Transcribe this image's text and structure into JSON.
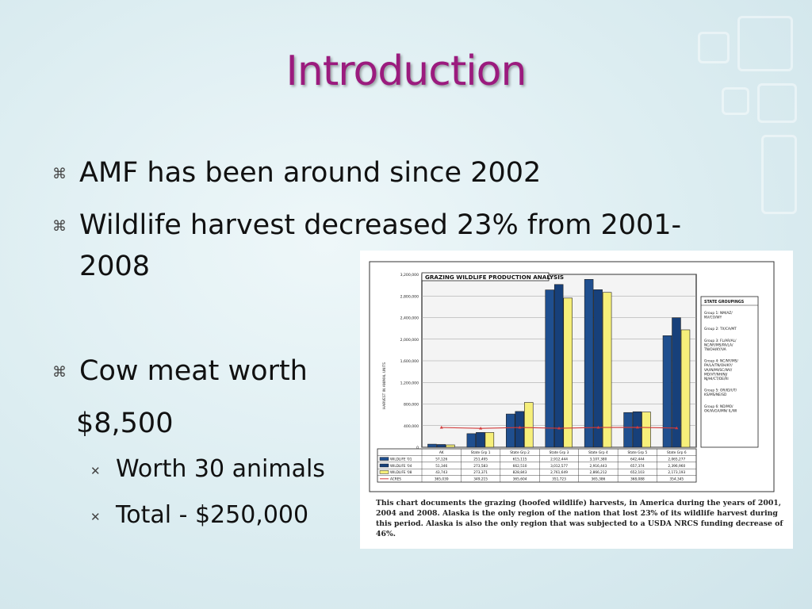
{
  "slide": {
    "title": "Introduction",
    "bullets": [
      "AMF has been around since 2002",
      "Wildlife harvest decreased 23% from 2001-",
      "2008",
      "Cow meat worth",
      "$8,500"
    ],
    "sub_bullets": [
      "Worth 30 animals",
      "Total  - $250,000"
    ],
    "icons": {
      "bullet": "command-key-icon",
      "sub_bullet": "cross-icon"
    }
  },
  "chart_data": {
    "type": "bar",
    "title": "GRAZING WILDLIFE PRODUCTION ANALYSIS",
    "ylabel": "HARVEST IN ANIMAL UNITS",
    "ylim": [
      0,
      3200000
    ],
    "yticks": [
      "3,200,000",
      "2,800,000",
      "2,400,000",
      "2,000,000",
      "1,600,000",
      "1,200,000",
      "800,000",
      "400,000",
      "0"
    ],
    "categories": [
      "AK",
      "State Grp 1",
      "State Grp 2",
      "State Grp 3",
      "State Grp 4",
      "State Grp 5",
      "State Grp 6"
    ],
    "series": [
      {
        "name": "WILDLIFE '01",
        "values": [
          57126,
          251495,
          615115,
          2912444,
          3107380,
          642444,
          2065277
        ],
        "color": "#1f4f8f"
      },
      {
        "name": "WILDLIFE '04",
        "values": [
          51346,
          273583,
          662510,
          3012577,
          2916443,
          657374,
          2396960
        ],
        "color": "#17407a"
      },
      {
        "name": "WILDLIFE '08",
        "values": [
          43743,
          273371,
          828843,
          2761649,
          2866212,
          652103,
          2173193
        ],
        "color": "#f6ef7a"
      }
    ],
    "line_series": {
      "name": "ACRES",
      "values": [
        365039,
        349215,
        365604,
        351723,
        365386,
        368088,
        354345
      ],
      "color": "#d23a3a"
    },
    "table": {
      "WILDLIFE '01": [
        "57,126",
        "251,495",
        "615,115",
        "2,912,444",
        "3,107,380",
        "642,444",
        "2,065,277"
      ],
      "WILDLIFE '04": [
        "51,346",
        "273,583",
        "662,510",
        "3,012,577",
        "2,916,443",
        "657,374",
        "2,396,960"
      ],
      "WILDLIFE '08": [
        "43,743",
        "273,371",
        "828,843",
        "2,761,649",
        "2,866,212",
        "652,103",
        "2,173,193"
      ],
      "ACRES": [
        "365,039",
        "349,215",
        "365,604",
        "351,723",
        "365,386",
        "368,088",
        "354,345"
      ]
    },
    "legend_title": "STATE GROUPINGS",
    "legend_items": [
      "Group 1: NM/AZ/ NV/CO/WY",
      "Group 2: TX/CA/MT",
      "Group 3: FL/AR/AL/ NC/NY/MS/PA/LA/ TN/OH/KY/VA",
      "Group 4: NC/NY/MS/ PA/LA/TN/OH/KY/ VA/IN/MI/SC/WV/ MD/VT/NH/NJ/ NJ/HI/CT/DE/RI",
      "Group 5: OR/ID/UT/ KS/MS/NE/SD",
      "Group 6: ND/MO/ OK/IA/GA/MN/ IL/WI"
    ],
    "legend_position": "right",
    "grid": true,
    "caption": "This chart documents the grazing (hoofed wildlife) harvests, in America during the years of 2001, 2004 and 2008. Alaska is the only region of the nation that lost 23% of its wildlife harvest during this period. Alaska is also the only region that was subjected to a USDA NRCS funding decrease of 46%."
  }
}
